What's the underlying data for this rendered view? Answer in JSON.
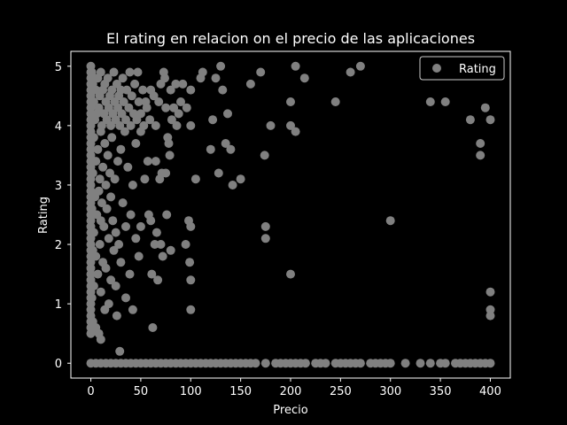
{
  "chart_data": {
    "type": "scatter",
    "title": "El rating en relacion on el precio de las aplicaciones",
    "xlabel": "Precio",
    "ylabel": "Rating",
    "xlim": [
      -20,
      420
    ],
    "ylim": [
      -0.25,
      5.25
    ],
    "xticks": [
      0,
      50,
      100,
      150,
      200,
      250,
      300,
      350,
      400
    ],
    "yticks": [
      0,
      1,
      2,
      3,
      4,
      5
    ],
    "grid": false,
    "legend": {
      "position": "top-right",
      "entries": [
        "Rating"
      ]
    },
    "colors": {
      "background": "#000000",
      "point": "#808080",
      "axis": "#ffffff"
    },
    "series": [
      {
        "name": "Rating",
        "points": [
          [
            0,
            5.0
          ],
          [
            0,
            4.9
          ],
          [
            0,
            4.8
          ],
          [
            0,
            4.7
          ],
          [
            0,
            4.6
          ],
          [
            0,
            4.5
          ],
          [
            0,
            4.4
          ],
          [
            0,
            4.3
          ],
          [
            0,
            4.2
          ],
          [
            0,
            4.1
          ],
          [
            0,
            4.0
          ],
          [
            0,
            3.9
          ],
          [
            0,
            3.8
          ],
          [
            0,
            3.7
          ],
          [
            0,
            3.6
          ],
          [
            0,
            3.5
          ],
          [
            0,
            3.4
          ],
          [
            0,
            3.3
          ],
          [
            0,
            3.2
          ],
          [
            0,
            3.1
          ],
          [
            0,
            3.0
          ],
          [
            0,
            2.9
          ],
          [
            0,
            2.8
          ],
          [
            0,
            2.7
          ],
          [
            0,
            2.6
          ],
          [
            0,
            2.5
          ],
          [
            0,
            2.4
          ],
          [
            0,
            2.3
          ],
          [
            0,
            2.2
          ],
          [
            0,
            2.1
          ],
          [
            0,
            2.0
          ],
          [
            0,
            1.9
          ],
          [
            0,
            1.8
          ],
          [
            0,
            1.7
          ],
          [
            0,
            1.6
          ],
          [
            0,
            1.5
          ],
          [
            0,
            1.4
          ],
          [
            0,
            1.3
          ],
          [
            0,
            1.2
          ],
          [
            0,
            1.1
          ],
          [
            0,
            1.0
          ],
          [
            0,
            0.9
          ],
          [
            0,
            0.8
          ],
          [
            0,
            0.7
          ],
          [
            0,
            0.6
          ],
          [
            0,
            0.5
          ],
          [
            0,
            0.0
          ],
          [
            1,
            4.9
          ],
          [
            2,
            4.7
          ],
          [
            2,
            3.2
          ],
          [
            1,
            2.6
          ],
          [
            2,
            1.9
          ],
          [
            1,
            1.1
          ],
          [
            2,
            0.7
          ],
          [
            3,
            4.4
          ],
          [
            3,
            3.8
          ],
          [
            3,
            2.2
          ],
          [
            3,
            1.3
          ],
          [
            4,
            4.1
          ],
          [
            4,
            2.8
          ],
          [
            5,
            4.6
          ],
          [
            5,
            3.4
          ],
          [
            5,
            1.8
          ],
          [
            5,
            0.6
          ],
          [
            6,
            4.2
          ],
          [
            6,
            2.5
          ],
          [
            7,
            4.8
          ],
          [
            7,
            3.6
          ],
          [
            7,
            1.5
          ],
          [
            8,
            4.3
          ],
          [
            8,
            2.9
          ],
          [
            8,
            0.5
          ],
          [
            9,
            4.5
          ],
          [
            9,
            3.1
          ],
          [
            9,
            2.0
          ],
          [
            10,
            4.9
          ],
          [
            10,
            3.9
          ],
          [
            10,
            2.4
          ],
          [
            10,
            1.2
          ],
          [
            10,
            0.4
          ],
          [
            11,
            4.0
          ],
          [
            11,
            2.7
          ],
          [
            12,
            4.6
          ],
          [
            12,
            3.3
          ],
          [
            12,
            1.7
          ],
          [
            13,
            4.2
          ],
          [
            13,
            2.3
          ],
          [
            14,
            4.7
          ],
          [
            14,
            3.7
          ],
          [
            14,
            0.9
          ],
          [
            15,
            4.4
          ],
          [
            15,
            3.0
          ],
          [
            15,
            1.6
          ],
          [
            16,
            4.1
          ],
          [
            16,
            2.6
          ],
          [
            17,
            4.8
          ],
          [
            17,
            3.5
          ],
          [
            18,
            4.3
          ],
          [
            18,
            2.1
          ],
          [
            18,
            1.0
          ],
          [
            19,
            4.5
          ],
          [
            19,
            3.2
          ],
          [
            20,
            4.0
          ],
          [
            20,
            2.8
          ],
          [
            20,
            1.4
          ],
          [
            21,
            4.6
          ],
          [
            21,
            3.8
          ],
          [
            22,
            4.2
          ],
          [
            22,
            2.4
          ],
          [
            23,
            4.9
          ],
          [
            23,
            1.9
          ],
          [
            24,
            4.4
          ],
          [
            24,
            3.1
          ],
          [
            25,
            4.1
          ],
          [
            25,
            2.2
          ],
          [
            25,
            1.3
          ],
          [
            26,
            4.7
          ],
          [
            26,
            0.8
          ],
          [
            27,
            4.3
          ],
          [
            27,
            3.4
          ],
          [
            28,
            4.5
          ],
          [
            28,
            2.0
          ],
          [
            29,
            4.0
          ],
          [
            29,
            0.2
          ],
          [
            30,
            4.6
          ],
          [
            30,
            3.6
          ],
          [
            30,
            1.7
          ],
          [
            31,
            4.2
          ],
          [
            32,
            4.8
          ],
          [
            32,
            2.7
          ],
          [
            33,
            4.4
          ],
          [
            34,
            3.9
          ],
          [
            35,
            4.1
          ],
          [
            35,
            2.3
          ],
          [
            35,
            1.1
          ],
          [
            36,
            4.6
          ],
          [
            37,
            3.3
          ],
          [
            38,
            4.3
          ],
          [
            39,
            4.9
          ],
          [
            39,
            1.5
          ],
          [
            40,
            4.0
          ],
          [
            40,
            2.5
          ],
          [
            41,
            4.5
          ],
          [
            42,
            3.0
          ],
          [
            42,
            0.9
          ],
          [
            43,
            4.2
          ],
          [
            44,
            4.7
          ],
          [
            45,
            3.7
          ],
          [
            45,
            2.1
          ],
          [
            46,
            4.1
          ],
          [
            47,
            4.9
          ],
          [
            48,
            4.4
          ],
          [
            48,
            1.8
          ],
          [
            50,
            4.2
          ],
          [
            50,
            3.9
          ],
          [
            50,
            2.3
          ],
          [
            52,
            4.6
          ],
          [
            53,
            4.0
          ],
          [
            54,
            3.1
          ],
          [
            55,
            4.4
          ],
          [
            56,
            4.3
          ],
          [
            57,
            3.4
          ],
          [
            58,
            2.5
          ],
          [
            59,
            4.1
          ],
          [
            60,
            4.6
          ],
          [
            60,
            2.4
          ],
          [
            61,
            1.5
          ],
          [
            62,
            0.6
          ],
          [
            63,
            4.5
          ],
          [
            64,
            2.0
          ],
          [
            65,
            4.0
          ],
          [
            65,
            3.4
          ],
          [
            66,
            2.2
          ],
          [
            67,
            1.4
          ],
          [
            68,
            4.4
          ],
          [
            69,
            3.1
          ],
          [
            70,
            4.7
          ],
          [
            70,
            2.0
          ],
          [
            71,
            3.2
          ],
          [
            72,
            1.8
          ],
          [
            73,
            4.9
          ],
          [
            74,
            4.8
          ],
          [
            75,
            4.3
          ],
          [
            75,
            3.2
          ],
          [
            76,
            2.5
          ],
          [
            77,
            3.8
          ],
          [
            78,
            3.7
          ],
          [
            79,
            3.5
          ],
          [
            80,
            4.6
          ],
          [
            80,
            1.9
          ],
          [
            81,
            4.1
          ],
          [
            83,
            4.3
          ],
          [
            85,
            4.7
          ],
          [
            86,
            4.0
          ],
          [
            88,
            4.2
          ],
          [
            90,
            4.4
          ],
          [
            92,
            4.7
          ],
          [
            95,
            2.0
          ],
          [
            96,
            4.3
          ],
          [
            98,
            2.4
          ],
          [
            99,
            1.7
          ],
          [
            100,
            4.6
          ],
          [
            100,
            4.0
          ],
          [
            100,
            2.3
          ],
          [
            100,
            1.4
          ],
          [
            100,
            0.9
          ],
          [
            105,
            3.1
          ],
          [
            110,
            4.8
          ],
          [
            112,
            4.9
          ],
          [
            120,
            3.6
          ],
          [
            122,
            4.1
          ],
          [
            125,
            4.8
          ],
          [
            128,
            3.2
          ],
          [
            130,
            5.0
          ],
          [
            132,
            4.6
          ],
          [
            135,
            3.7
          ],
          [
            137,
            4.2
          ],
          [
            140,
            3.6
          ],
          [
            142,
            3.0
          ],
          [
            150,
            3.1
          ],
          [
            160,
            4.7
          ],
          [
            170,
            4.9
          ],
          [
            174,
            3.5
          ],
          [
            175,
            2.3
          ],
          [
            175,
            2.1
          ],
          [
            180,
            4.0
          ],
          [
            200,
            4.4
          ],
          [
            200,
            4.0
          ],
          [
            200,
            1.5
          ],
          [
            205,
            3.9
          ],
          [
            205,
            5.0
          ],
          [
            214,
            4.8
          ],
          [
            245,
            4.4
          ],
          [
            260,
            4.9
          ],
          [
            270,
            5.0
          ],
          [
            300,
            2.4
          ],
          [
            340,
            4.4
          ],
          [
            355,
            4.4
          ],
          [
            380,
            4.1
          ],
          [
            390,
            3.7
          ],
          [
            390,
            3.5
          ],
          [
            395,
            4.3
          ],
          [
            400,
            4.1
          ],
          [
            400,
            1.2
          ],
          [
            400,
            0.9
          ],
          [
            400,
            0.8
          ],
          [
            5,
            0
          ],
          [
            10,
            0
          ],
          [
            15,
            0
          ],
          [
            20,
            0
          ],
          [
            25,
            0
          ],
          [
            30,
            0
          ],
          [
            35,
            0
          ],
          [
            40,
            0
          ],
          [
            45,
            0
          ],
          [
            50,
            0
          ],
          [
            55,
            0
          ],
          [
            60,
            0
          ],
          [
            65,
            0
          ],
          [
            70,
            0
          ],
          [
            75,
            0
          ],
          [
            80,
            0
          ],
          [
            85,
            0
          ],
          [
            90,
            0
          ],
          [
            95,
            0
          ],
          [
            100,
            0
          ],
          [
            105,
            0
          ],
          [
            110,
            0
          ],
          [
            115,
            0
          ],
          [
            120,
            0
          ],
          [
            125,
            0
          ],
          [
            130,
            0
          ],
          [
            135,
            0
          ],
          [
            140,
            0
          ],
          [
            145,
            0
          ],
          [
            150,
            0
          ],
          [
            155,
            0
          ],
          [
            160,
            0
          ],
          [
            165,
            0
          ],
          [
            175,
            0
          ],
          [
            185,
            0
          ],
          [
            190,
            0
          ],
          [
            195,
            0
          ],
          [
            200,
            0
          ],
          [
            205,
            0
          ],
          [
            210,
            0
          ],
          [
            215,
            0
          ],
          [
            225,
            0
          ],
          [
            230,
            0
          ],
          [
            235,
            0
          ],
          [
            245,
            0
          ],
          [
            250,
            0
          ],
          [
            255,
            0
          ],
          [
            260,
            0
          ],
          [
            265,
            0
          ],
          [
            270,
            0
          ],
          [
            280,
            0
          ],
          [
            285,
            0
          ],
          [
            290,
            0
          ],
          [
            295,
            0
          ],
          [
            300,
            0
          ],
          [
            315,
            0
          ],
          [
            330,
            0
          ],
          [
            340,
            0
          ],
          [
            350,
            0
          ],
          [
            355,
            0
          ],
          [
            365,
            0
          ],
          [
            370,
            0
          ],
          [
            375,
            0
          ],
          [
            380,
            0
          ],
          [
            385,
            0
          ],
          [
            390,
            0
          ],
          [
            395,
            0
          ],
          [
            400,
            0
          ]
        ]
      }
    ]
  }
}
